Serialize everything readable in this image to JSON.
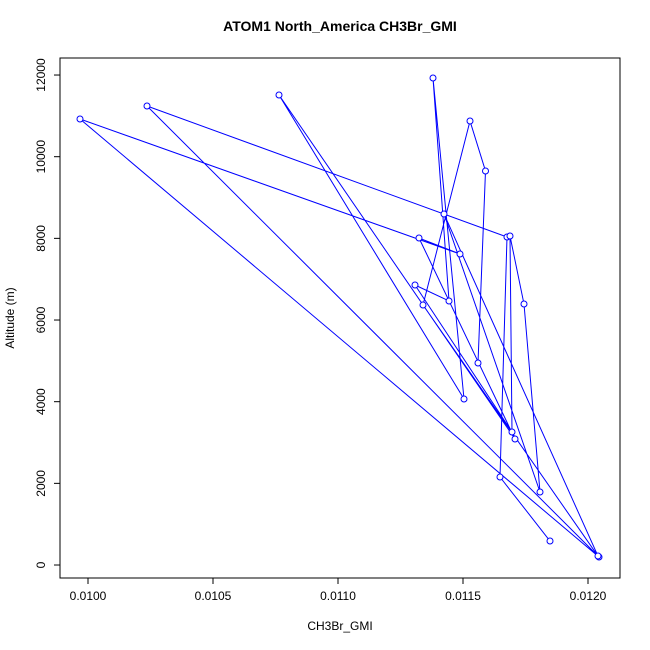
{
  "chart_data": {
    "type": "line",
    "title": "ATOM1 North_America CH3Br_GMI",
    "x_label": "CH3Br_GMI",
    "y_label": "Altitude (m)",
    "markers": "open-circle",
    "series": [
      {
        "color": "#0000ff",
        "x": [
          0.011848,
          0.011648,
          0.011676,
          0.010236,
          0.012044,
          0.009968,
          0.011488,
          0.011324,
          0.011708,
          0.010764,
          0.011504,
          0.01138,
          0.011444,
          0.011308,
          0.011696,
          0.011688,
          0.011744,
          0.011808,
          0.011424,
          0.01204,
          0.01134,
          0.011528,
          0.01159,
          0.01156
        ],
        "values": [
          588,
          2155,
          8034,
          11241,
          196,
          10923,
          7617,
          8009,
          3086,
          11511,
          4066,
          11927,
          6466,
          6858,
          3257,
          8058,
          6392,
          1788,
          8597,
          220,
          6368,
          10874,
          9650,
          4947
        ]
      }
    ],
    "xlim": [
      0.009888,
      0.012128
    ],
    "ylim": [
      -318,
      12417
    ],
    "xticks": [
      {
        "value": 0.01,
        "label": "0.0100"
      },
      {
        "value": 0.0105,
        "label": "0.0105"
      },
      {
        "value": 0.011,
        "label": "0.0110"
      },
      {
        "value": 0.0115,
        "label": "0.0115"
      },
      {
        "value": 0.012,
        "label": "0.0120"
      }
    ],
    "yticks": [
      0,
      2000,
      4000,
      6000,
      8000,
      10000,
      12000
    ]
  }
}
